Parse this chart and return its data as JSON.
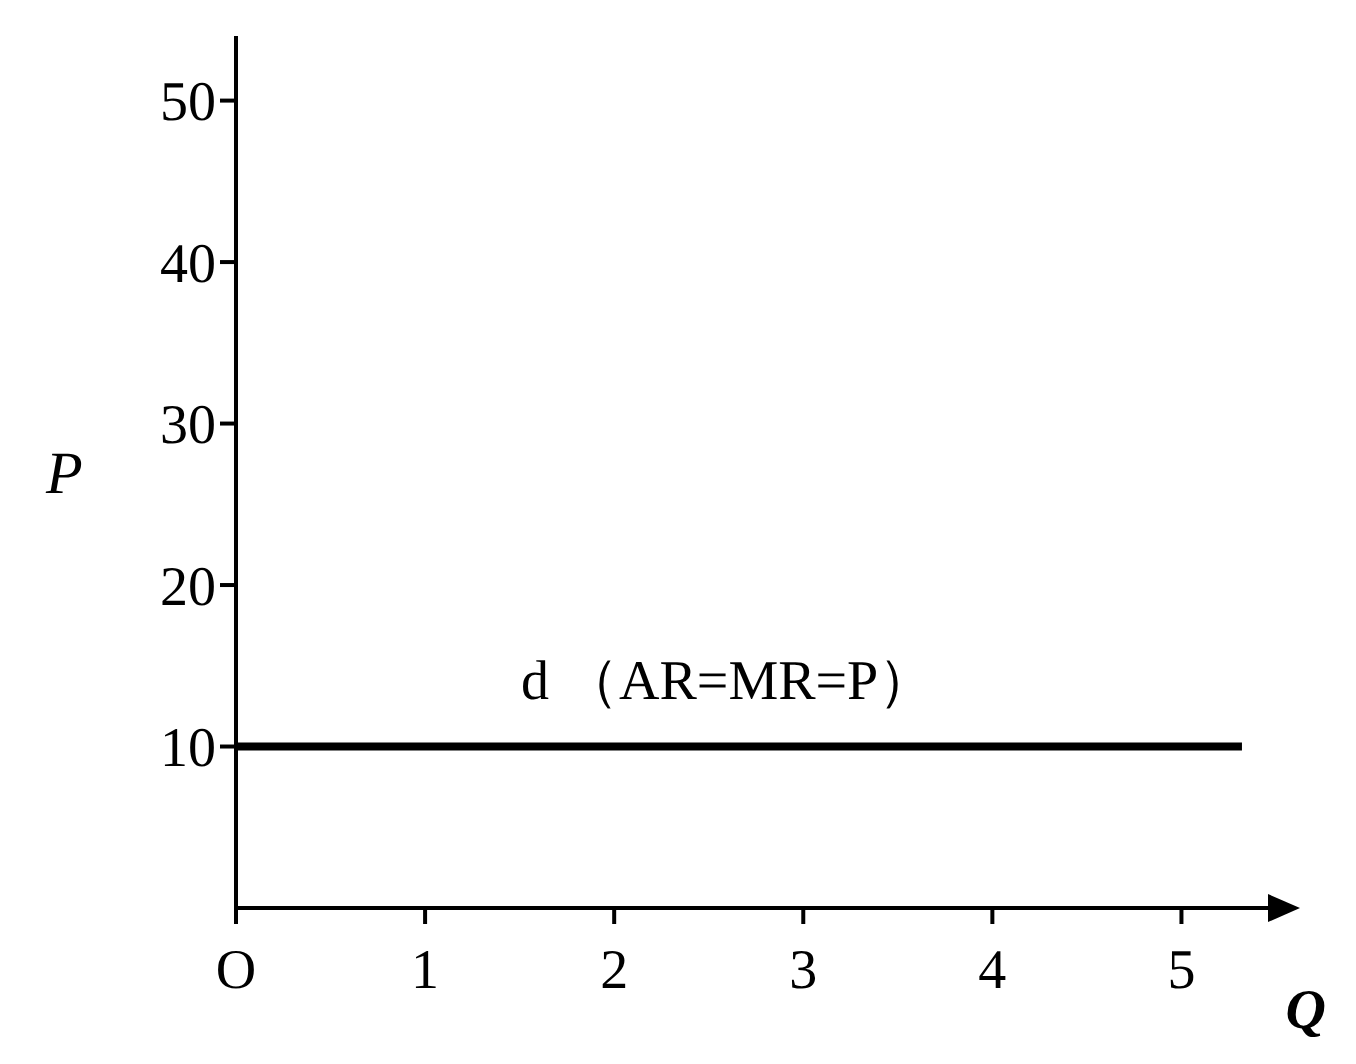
{
  "chart_data": {
    "type": "line",
    "xlabel": "Q",
    "ylabel": "P",
    "x": [
      0,
      5.32
    ],
    "series": [
      {
        "color": "#000000",
        "values": [
          10,
          10
        ]
      }
    ],
    "xlim": [
      0,
      5.5
    ],
    "xticks": [
      {
        "value": 0,
        "label": "O"
      },
      1,
      2,
      3,
      4,
      5
    ],
    "ylim": [
      0,
      54
    ],
    "yticks": [
      10,
      20,
      30,
      40,
      50
    ],
    "annotations": [
      {
        "text": "d （AR=MR=P）",
        "x": 2.6,
        "y": 10
      }
    ],
    "grid": false,
    "legend": false,
    "marker": "none",
    "line_style": "solid"
  }
}
